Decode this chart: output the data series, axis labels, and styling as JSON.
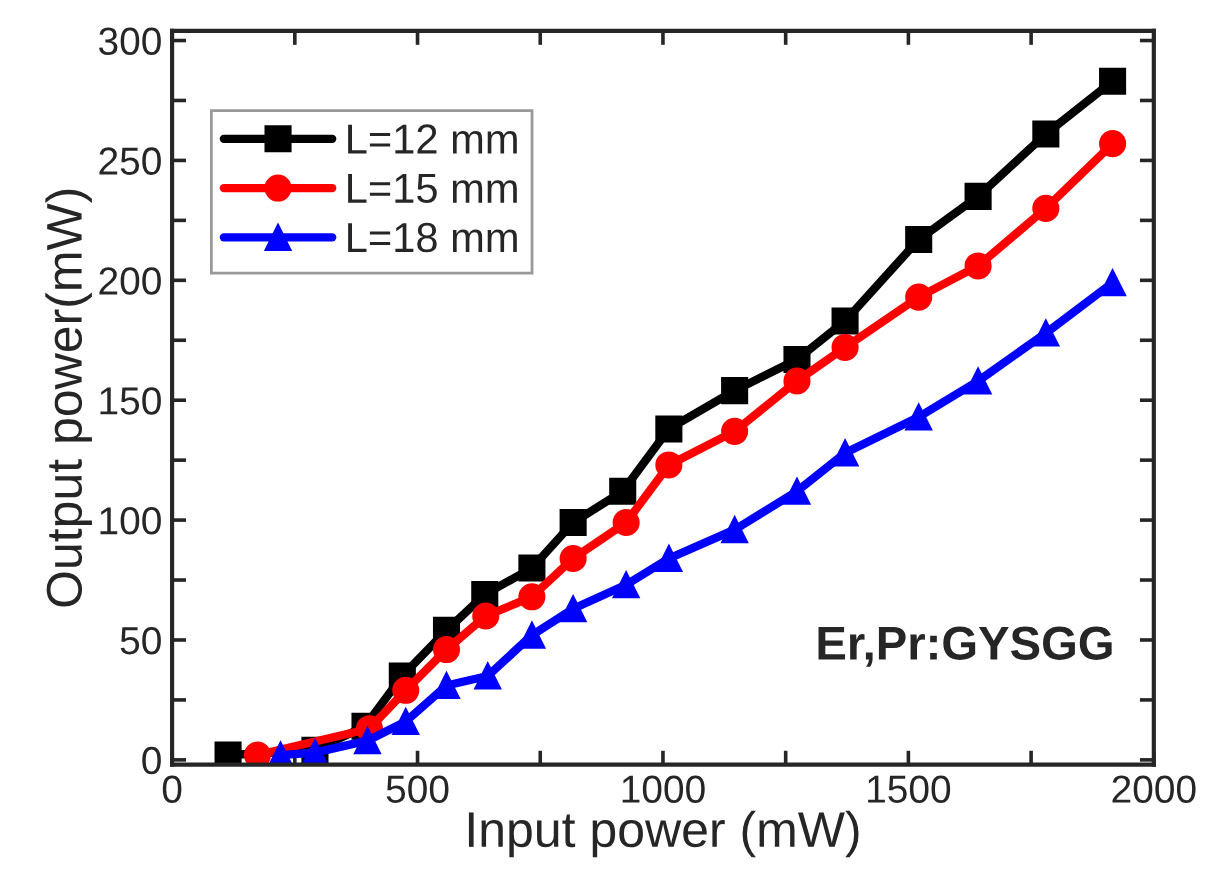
{
  "chart_data": {
    "type": "line",
    "xlabel": "Input power (mW)",
    "ylabel": "Output power(mW)",
    "xlim": [
      0,
      2000
    ],
    "ylim": [
      -2,
      304
    ],
    "xticks": [
      0,
      {
        "value": 250,
        "label": null
      },
      500,
      {
        "value": 750,
        "label": null
      },
      1000,
      {
        "value": 1250,
        "label": null
      },
      1500,
      {
        "value": 1750,
        "label": null
      },
      2000
    ],
    "yticks": [
      0,
      {
        "value": 25,
        "label": null
      },
      50,
      {
        "value": 75,
        "label": null
      },
      100,
      {
        "value": 125,
        "label": null
      },
      150,
      {
        "value": 175,
        "label": null
      },
      200,
      {
        "value": 225,
        "label": null
      },
      250,
      {
        "value": 275,
        "label": null
      },
      300
    ],
    "legend": "top left",
    "grid": false,
    "line_style": "solid",
    "annotations": [
      "Er,Pr:GYSGG"
    ],
    "series": [
      {
        "name": "L=12 mm",
        "color": "#000000",
        "marker": "square",
        "x": [
          114,
          291,
          393,
          469,
          559,
          637,
          733,
          817,
          918,
          1012,
          1146,
          1273,
          1371,
          1521,
          1642,
          1780,
          1916
        ],
        "values": [
          2,
          4,
          14,
          35,
          54,
          69,
          80,
          99,
          112,
          138,
          154,
          167,
          183,
          217,
          235,
          261,
          283
        ]
      },
      {
        "name": "L=15 mm",
        "color": "#ff0000",
        "marker": "circle",
        "x": [
          174,
          291,
          402,
          476,
          559,
          639,
          733,
          817,
          925,
          1012,
          1146,
          1273,
          1371,
          1521,
          1642,
          1780,
          1916
        ],
        "values": [
          2,
          null,
          13,
          29,
          46,
          60,
          68,
          84,
          99,
          123,
          137,
          158,
          172,
          193,
          206,
          230,
          257
        ]
      },
      {
        "name": "L=18 mm",
        "color": "#0000ff",
        "marker": "triangle",
        "x": [
          221,
          291,
          398,
          476,
          559,
          643,
          733,
          817,
          925,
          1012,
          1146,
          1273,
          1371,
          1521,
          1642,
          1780,
          1916
        ],
        "values": [
          2,
          3,
          8,
          16,
          31,
          35,
          52,
          63,
          73,
          84,
          96,
          112,
          128,
          143,
          158,
          178,
          199
        ]
      }
    ]
  }
}
